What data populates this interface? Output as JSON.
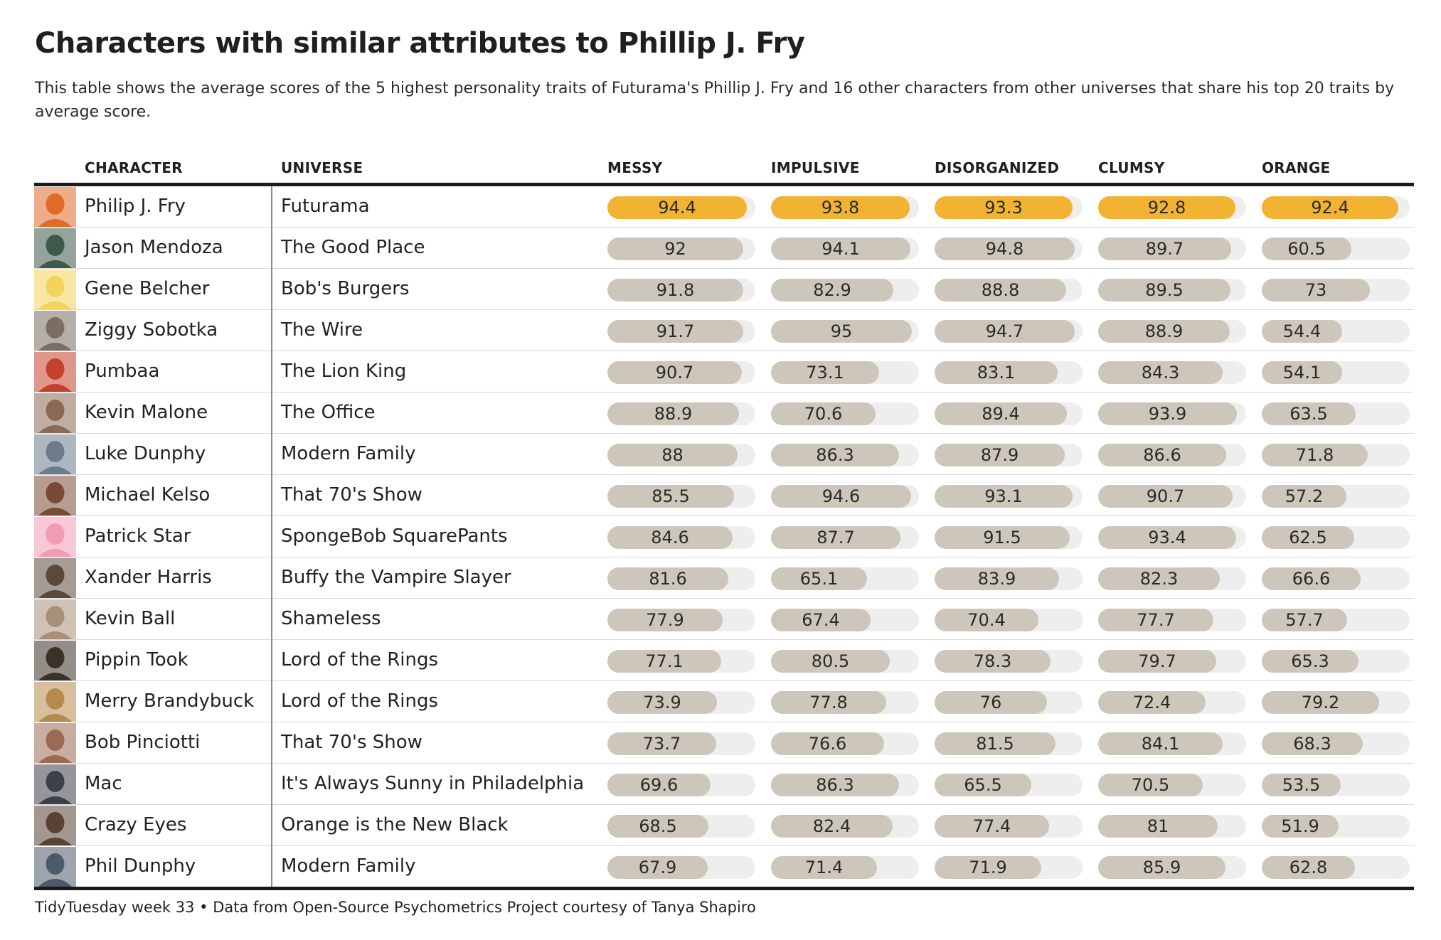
{
  "title": "Characters with similar attributes to Phillip J. Fry",
  "subtitle": "This table shows the average scores of the 5 highest personality traits of Futurama's Phillip J. Fry and 16 other characters from other universes that share his top 20 traits by average score.",
  "footer": "TidyTuesday week 33 • Data from Open-Source Psychometrics Project courtesy of Tanya Shapiro",
  "colors": {
    "highlight": "#f2b232",
    "bar": "#cdc7bb",
    "track": "#eeeeee",
    "rule": "#1a1a1a"
  },
  "chart_data": {
    "type": "table",
    "columns": [
      "CHARACTER",
      "UNIVERSE",
      "MESSY",
      "IMPULSIVE",
      "DISORGANIZED",
      "CLUMSY",
      "ORANGE"
    ],
    "scale_max": 100,
    "highlight_row": 0,
    "rows": [
      {
        "character": "Philip J. Fry",
        "universe": "Futurama",
        "values": [
          94.4,
          93.8,
          93.3,
          92.8,
          92.4
        ],
        "avatar_color": "#e06a2a"
      },
      {
        "character": "Jason Mendoza",
        "universe": "The Good Place",
        "values": [
          92,
          94.1,
          94.8,
          89.7,
          60.5
        ],
        "avatar_color": "#3d5a4a"
      },
      {
        "character": "Gene Belcher",
        "universe": "Bob's Burgers",
        "values": [
          91.8,
          82.9,
          88.8,
          89.5,
          73
        ],
        "avatar_color": "#f3d35a"
      },
      {
        "character": "Ziggy Sobotka",
        "universe": "The Wire",
        "values": [
          91.7,
          95,
          94.7,
          88.9,
          54.4
        ],
        "avatar_color": "#7a6e62"
      },
      {
        "character": "Pumbaa",
        "universe": "The Lion King",
        "values": [
          90.7,
          73.1,
          83.1,
          84.3,
          54.1
        ],
        "avatar_color": "#c4412b"
      },
      {
        "character": "Kevin Malone",
        "universe": "The Office",
        "values": [
          88.9,
          70.6,
          89.4,
          93.9,
          63.5
        ],
        "avatar_color": "#8a6a55"
      },
      {
        "character": "Luke Dunphy",
        "universe": "Modern Family",
        "values": [
          88,
          86.3,
          87.9,
          86.6,
          71.8
        ],
        "avatar_color": "#6c7c8c"
      },
      {
        "character": "Michael Kelso",
        "universe": "That 70's Show",
        "values": [
          85.5,
          94.6,
          93.1,
          90.7,
          57.2
        ],
        "avatar_color": "#7b4a36"
      },
      {
        "character": "Patrick Star",
        "universe": "SpongeBob SquarePants",
        "values": [
          84.6,
          87.7,
          91.5,
          93.4,
          62.5
        ],
        "avatar_color": "#f29bb4"
      },
      {
        "character": "Xander Harris",
        "universe": "Buffy the Vampire Slayer",
        "values": [
          81.6,
          65.1,
          83.9,
          82.3,
          66.6
        ],
        "avatar_color": "#5a4a3e"
      },
      {
        "character": "Kevin Ball",
        "universe": "Shameless",
        "values": [
          77.9,
          67.4,
          70.4,
          77.7,
          57.7
        ],
        "avatar_color": "#a89078"
      },
      {
        "character": "Pippin Took",
        "universe": "Lord of the Rings",
        "values": [
          77.1,
          80.5,
          78.3,
          79.7,
          65.3
        ],
        "avatar_color": "#3a3226"
      },
      {
        "character": "Merry Brandybuck",
        "universe": "Lord of the Rings",
        "values": [
          73.9,
          77.8,
          76,
          72.4,
          79.2
        ],
        "avatar_color": "#b68a4c"
      },
      {
        "character": "Bob Pinciotti",
        "universe": "That 70's Show",
        "values": [
          73.7,
          76.6,
          81.5,
          84.1,
          68.3
        ],
        "avatar_color": "#9b6a52"
      },
      {
        "character": "Mac",
        "universe": "It's Always Sunny in Philadelphia",
        "values": [
          69.6,
          86.3,
          65.5,
          70.5,
          53.5
        ],
        "avatar_color": "#3c4048"
      },
      {
        "character": "Crazy Eyes",
        "universe": "Orange is the New Black",
        "values": [
          68.5,
          82.4,
          77.4,
          81,
          51.9
        ],
        "avatar_color": "#5a4236"
      },
      {
        "character": "Phil Dunphy",
        "universe": "Modern Family",
        "values": [
          67.9,
          71.4,
          71.9,
          85.9,
          62.8
        ],
        "avatar_color": "#4c5a6a"
      }
    ]
  }
}
